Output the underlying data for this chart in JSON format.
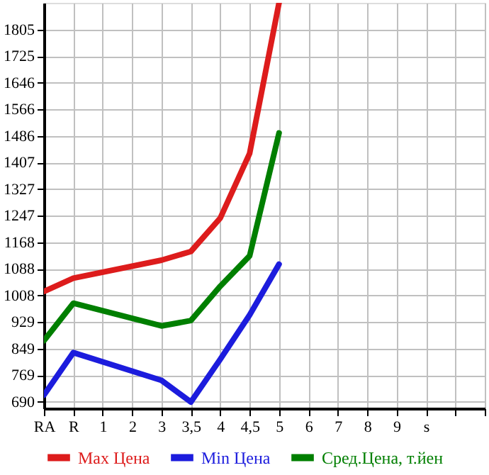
{
  "chart_data": {
    "type": "line",
    "categories": [
      "RA",
      "R",
      "1",
      "2",
      "3",
      "3,5",
      "4",
      "4,5",
      "5",
      "6",
      "7",
      "8",
      "9",
      "s",
      null,
      null
    ],
    "series": [
      {
        "name": "Max Цена",
        "color": "#dd1c1c",
        "values": [
          1020,
          1060,
          null,
          null,
          1114,
          1140,
          1240,
          1434,
          1885,
          null,
          null,
          null,
          null,
          null,
          null,
          null
        ]
      },
      {
        "name": "Min Цена",
        "color": "#1c1cdd",
        "values": [
          710,
          837,
          null,
          null,
          754,
          689,
          817,
          950,
          1102,
          null,
          null,
          null,
          null,
          null,
          null,
          null
        ]
      },
      {
        "name": "Сред.Цена, т.йен",
        "color": "#007f00",
        "values": [
          873,
          985,
          null,
          null,
          917,
          933,
          1036,
          1127,
          1495,
          null,
          null,
          null,
          null,
          null,
          null,
          null
        ]
      }
    ],
    "ylim": [
      670,
      1885
    ],
    "yticks": [
      690,
      769,
      849,
      929,
      1008,
      1088,
      1168,
      1247,
      1327,
      1407,
      1486,
      1566,
      1646,
      1725,
      1805
    ],
    "grid": true,
    "legend": "bottom",
    "marker": "none",
    "line_style": "solid"
  }
}
